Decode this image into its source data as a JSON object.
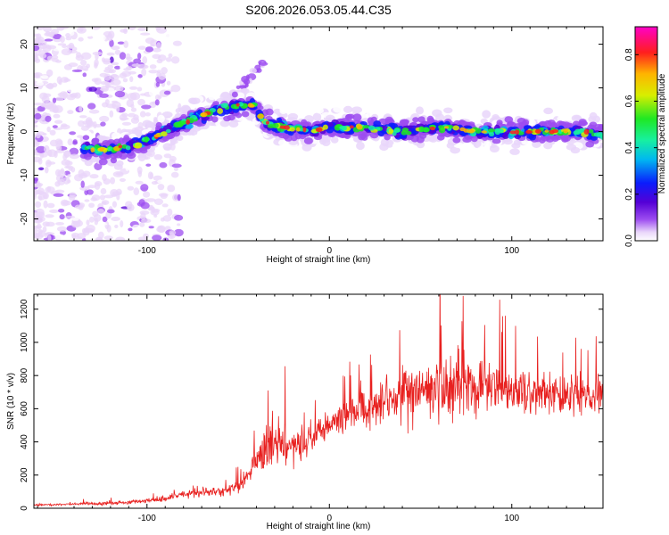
{
  "page_title": "S206.2026.053.05.44.C35",
  "chart_data": [
    {
      "type": "heatmap",
      "title": "S206.2026.053.05.44.C35",
      "xlabel": "Height of straight line (km)",
      "ylabel": "Frequency (Hz)",
      "xlim": [
        -162,
        150
      ],
      "ylim": [
        -25,
        24
      ],
      "xticks": [
        -100,
        0,
        100
      ],
      "yticks": [
        -20,
        -10,
        0,
        10,
        20
      ],
      "colorbar": {
        "label": "Normalized spectral amplitude",
        "range": [
          0.0,
          0.92
        ],
        "ticks": [
          0.0,
          0.2,
          0.4,
          0.6,
          0.8
        ],
        "colors": [
          "#ffffff",
          "#e9d6fa",
          "#9c4cf0",
          "#5400d6",
          "#0a1dfc",
          "#00b8f0",
          "#17f0a0",
          "#1fe823",
          "#d8ee00",
          "#ffb400",
          "#ff1e1e",
          "#ff00c8"
        ]
      },
      "ridge": {
        "x": [
          -135,
          -120,
          -105,
          -95,
          -85,
          -75,
          -60,
          -50,
          -42,
          -35,
          -25,
          -10,
          0,
          20,
          40,
          60,
          80,
          100,
          120,
          140,
          150
        ],
        "freq_hz": [
          -4,
          -4,
          -3,
          -1,
          1,
          3,
          5,
          6,
          6,
          2,
          1,
          0,
          1,
          1,
          0,
          1,
          0,
          0,
          0,
          0,
          -1
        ]
      }
    },
    {
      "type": "line",
      "xlabel": "Height of straight line (km)",
      "ylabel": "SNR (10 * v/v)",
      "xlim": [
        -162,
        150
      ],
      "ylim": [
        0,
        1290
      ],
      "xticks": [
        -100,
        0,
        100
      ],
      "yticks": [
        0,
        200,
        400,
        600,
        800,
        1000,
        1200
      ],
      "color": "#e8201f",
      "series": [
        {
          "name": "SNR",
          "x": [
            -162,
            -140,
            -120,
            -100,
            -90,
            -80,
            -70,
            -60,
            -50,
            -45,
            -40,
            -35,
            -30,
            -25,
            -20,
            -15,
            -10,
            0,
            10,
            20,
            30,
            40,
            50,
            60,
            70,
            80,
            90,
            100,
            110,
            120,
            130,
            140,
            150
          ],
          "y": [
            20,
            25,
            30,
            45,
            60,
            85,
            95,
            100,
            130,
            200,
            280,
            360,
            380,
            380,
            350,
            390,
            430,
            510,
            560,
            610,
            650,
            700,
            700,
            710,
            760,
            730,
            720,
            710,
            700,
            700,
            690,
            690,
            690
          ],
          "spread": [
            10,
            10,
            15,
            20,
            30,
            35,
            40,
            45,
            60,
            80,
            120,
            180,
            200,
            180,
            160,
            150,
            150,
            150,
            160,
            180,
            220,
            260,
            270,
            280,
            300,
            260,
            250,
            230,
            220,
            200,
            200,
            200,
            200
          ]
        }
      ]
    }
  ]
}
